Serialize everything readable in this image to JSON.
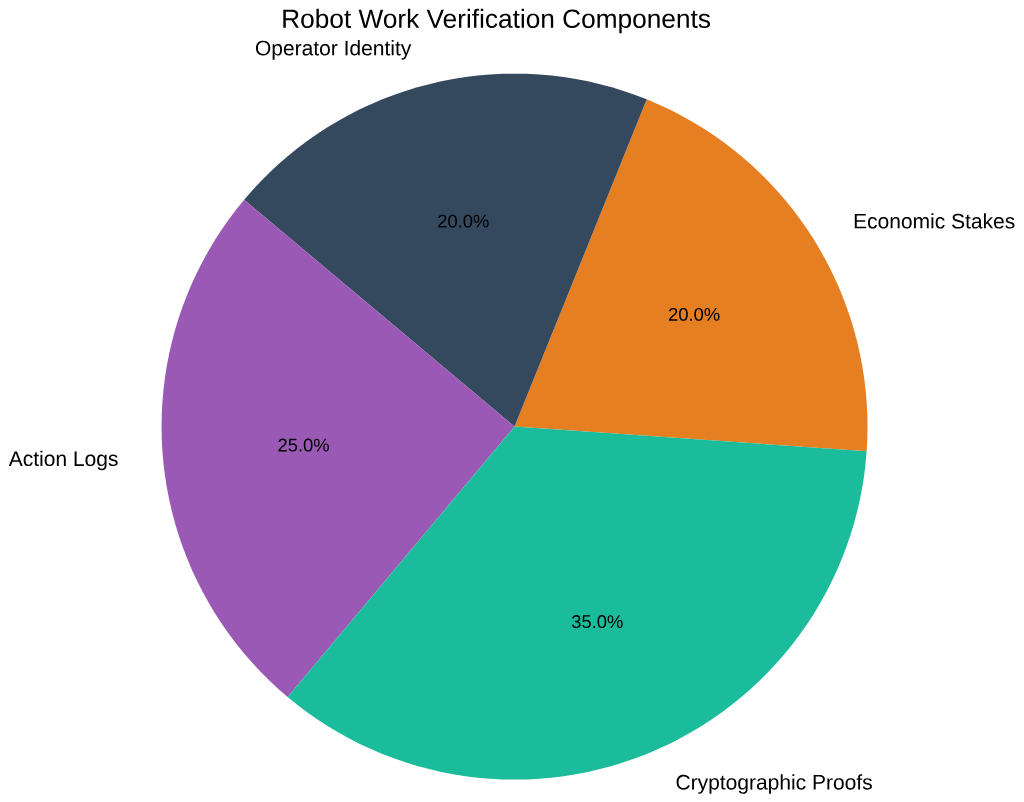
{
  "chart_data": {
    "type": "pie",
    "title": "Robot Work Verification Components",
    "categories": [
      "Economic Stakes",
      "Operator Identity",
      "Action Logs",
      "Cryptographic Proofs"
    ],
    "values": [
      20,
      20,
      25,
      35
    ],
    "colors": [
      "#e67e22",
      "#34495e",
      "#9b59b6",
      "#1abc9c"
    ],
    "value_labels": [
      "20.0%",
      "20.0%",
      "25.0%",
      "35.0%"
    ]
  }
}
